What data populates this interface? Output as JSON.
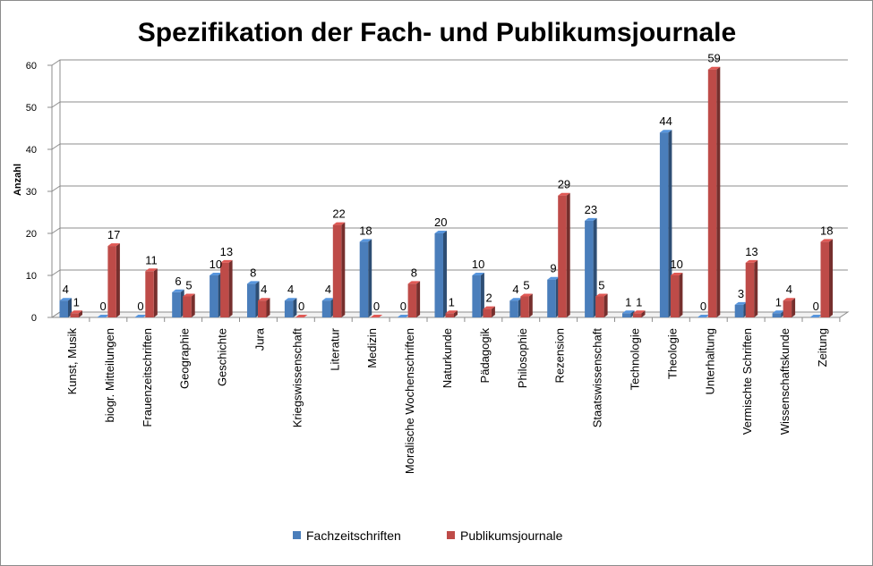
{
  "chart_data": {
    "type": "bar",
    "title": "Spezifikation der Fach- und Publikumsjournale",
    "xlabel": "",
    "ylabel": "Anzahl",
    "ylim": [
      0,
      60
    ],
    "yticks": [
      0,
      10,
      20,
      30,
      40,
      50,
      60
    ],
    "grid": true,
    "legend_position": "bottom",
    "categories": [
      "Kunst, Musik",
      "biogr. Mitteilungen",
      "Frauenzeitschriften",
      "Geographie",
      "Geschichte",
      "Jura",
      "Kriegswissenschaft",
      "Literatur",
      "Medizin",
      "Moralische Wochenschriften",
      "Naturkunde",
      "Pädagogik",
      "Philosophie",
      "Rezension",
      "Staatswissenschaft",
      "Technologie",
      "Theologie",
      "Unterhaltung",
      "Vermischte Schriften",
      "Wissenschaftskunde",
      "Zeitung"
    ],
    "series": [
      {
        "name": "Fachzeitschriften",
        "color": "#4a7ebb",
        "values": [
          4,
          0,
          0,
          6,
          10,
          8,
          4,
          4,
          18,
          0,
          20,
          10,
          4,
          9,
          23,
          1,
          44,
          0,
          3,
          1,
          0
        ]
      },
      {
        "name": "Publikumsjournale",
        "color": "#be4b48",
        "values": [
          1,
          17,
          11,
          5,
          13,
          4,
          0,
          22,
          0,
          8,
          1,
          2,
          5,
          29,
          5,
          1,
          10,
          59,
          13,
          4,
          18
        ]
      }
    ]
  }
}
